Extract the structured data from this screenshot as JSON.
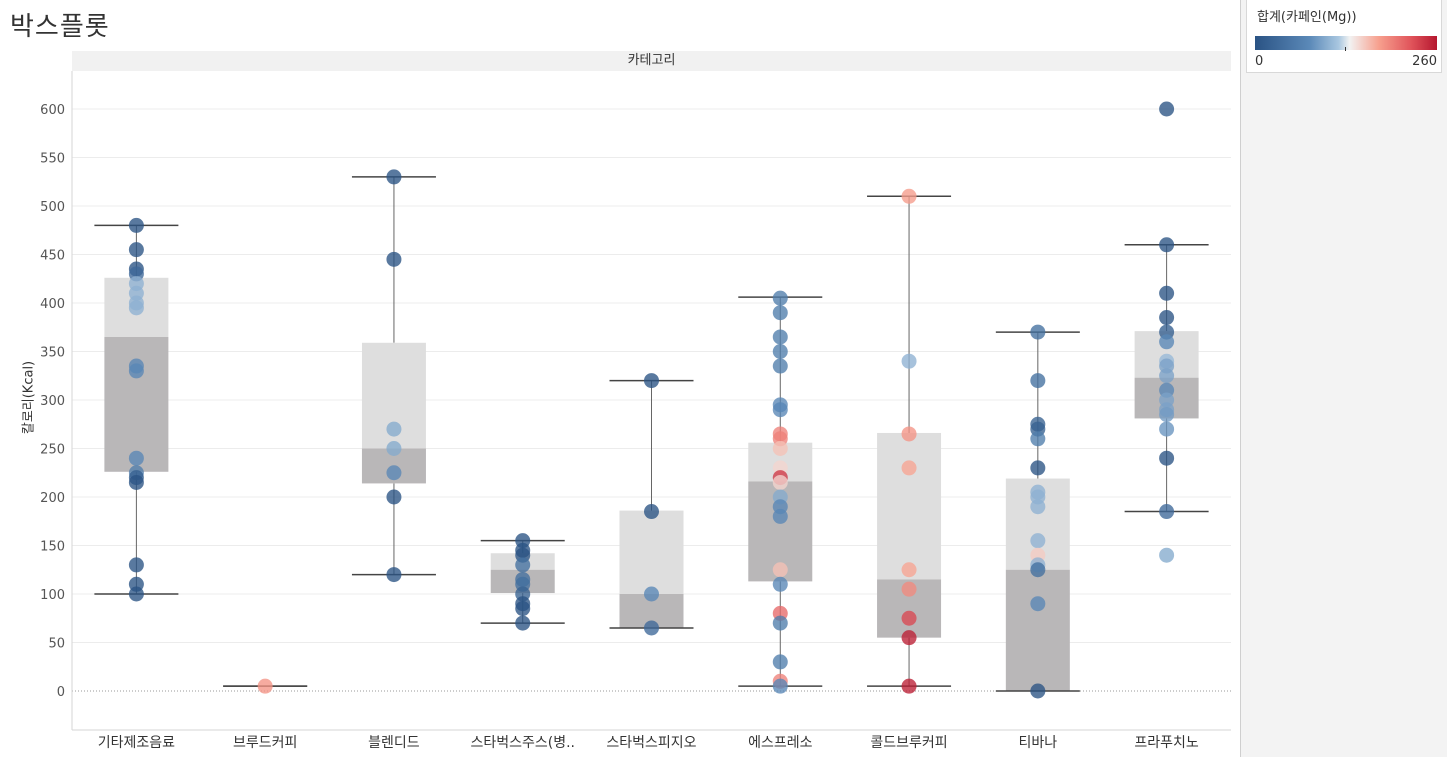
{
  "title": "박스플롯",
  "panel_header": "카테고리",
  "legend": {
    "title": "합계(카페인(Mg))",
    "min_label": "0",
    "max_label": "260",
    "color_scale": [
      "#2a5384",
      "#5b89b8",
      "#a9c7e0",
      "#f2f2f2",
      "#f7a08e",
      "#e0535a",
      "#b5172f"
    ]
  },
  "chart_data": {
    "type": "boxplot",
    "ylabel": "칼로리(Kcal)",
    "ylim": [
      -40,
      640
    ],
    "yticks": [
      0,
      50,
      100,
      150,
      200,
      250,
      300,
      350,
      400,
      450,
      500,
      550,
      600
    ],
    "color_field": "카페인(Mg)",
    "color_range": [
      0,
      260
    ],
    "categories": [
      "기타제조음료",
      "브루드커피",
      "블렌디드",
      "스타벅스주스(병..",
      "스타벅스피지오",
      "에스프레소",
      "콜드브루커피",
      "티바나",
      "프라푸치노"
    ],
    "boxes": [
      {
        "category": "기타제조음료",
        "min": 100,
        "q1": 226,
        "median": 365,
        "q3": 426,
        "max": 480
      },
      {
        "category": "브루드커피",
        "min": 5,
        "q1": 5,
        "median": 5,
        "q3": 5,
        "max": 5
      },
      {
        "category": "블렌디드",
        "min": 120,
        "q1": 214,
        "median": 250,
        "q3": 359,
        "max": 530
      },
      {
        "category": "스타벅스주스(병..",
        "min": 70,
        "q1": 101,
        "median": 125,
        "q3": 142,
        "max": 155
      },
      {
        "category": "스타벅스피지오",
        "min": 65,
        "q1": 65,
        "median": 100,
        "q3": 186,
        "max": 320
      },
      {
        "category": "에스프레소",
        "min": 5,
        "q1": 113,
        "median": 216,
        "q3": 256,
        "max": 406
      },
      {
        "category": "콜드브루커피",
        "min": 5,
        "q1": 55,
        "median": 115,
        "q3": 266,
        "max": 510
      },
      {
        "category": "티바나",
        "min": 0,
        "q1": 0,
        "median": 125,
        "q3": 219,
        "max": 370
      },
      {
        "category": "프라푸치노",
        "min": 185,
        "q1": 281,
        "median": 323,
        "q3": 371,
        "max": 460
      }
    ],
    "points": [
      {
        "category": "기타제조음료",
        "calories": 480,
        "caffeine": 0
      },
      {
        "category": "기타제조음료",
        "calories": 455,
        "caffeine": 0
      },
      {
        "category": "기타제조음료",
        "calories": 435,
        "caffeine": 0
      },
      {
        "category": "기타제조음료",
        "calories": 430,
        "caffeine": 30
      },
      {
        "category": "기타제조음료",
        "calories": 420,
        "caffeine": 105
      },
      {
        "category": "기타제조음료",
        "calories": 410,
        "caffeine": 105
      },
      {
        "category": "기타제조음료",
        "calories": 400,
        "caffeine": 105
      },
      {
        "category": "기타제조음료",
        "calories": 395,
        "caffeine": 105
      },
      {
        "category": "기타제조음료",
        "calories": 335,
        "caffeine": 75
      },
      {
        "category": "기타제조음료",
        "calories": 330,
        "caffeine": 75
      },
      {
        "category": "기타제조음료",
        "calories": 240,
        "caffeine": 75
      },
      {
        "category": "기타제조음료",
        "calories": 225,
        "caffeine": 60
      },
      {
        "category": "기타제조음료",
        "calories": 220,
        "caffeine": 15
      },
      {
        "category": "기타제조음료",
        "calories": 215,
        "caffeine": 0
      },
      {
        "category": "기타제조음료",
        "calories": 130,
        "caffeine": 0
      },
      {
        "category": "기타제조음료",
        "calories": 110,
        "caffeine": 0
      },
      {
        "category": "기타제조음료",
        "calories": 100,
        "caffeine": 0
      },
      {
        "category": "브루드커피",
        "calories": 5,
        "caffeine": 185
      },
      {
        "category": "블렌디드",
        "calories": 530,
        "caffeine": 0
      },
      {
        "category": "블렌디드",
        "calories": 445,
        "caffeine": 0
      },
      {
        "category": "블렌디드",
        "calories": 270,
        "caffeine": 100
      },
      {
        "category": "블렌디드",
        "calories": 250,
        "caffeine": 100
      },
      {
        "category": "블렌디드",
        "calories": 225,
        "caffeine": 75
      },
      {
        "category": "블렌디드",
        "calories": 200,
        "caffeine": 0
      },
      {
        "category": "블렌디드",
        "calories": 120,
        "caffeine": 0
      },
      {
        "category": "스타벅스주스(병..",
        "calories": 155,
        "caffeine": 0
      },
      {
        "category": "스타벅스주스(병..",
        "calories": 145,
        "caffeine": 0
      },
      {
        "category": "스타벅스주스(병..",
        "calories": 140,
        "caffeine": 0
      },
      {
        "category": "스타벅스주스(병..",
        "calories": 130,
        "caffeine": 40
      },
      {
        "category": "스타벅스주스(병..",
        "calories": 115,
        "caffeine": 40
      },
      {
        "category": "스타벅스주스(병..",
        "calories": 110,
        "caffeine": 40
      },
      {
        "category": "스타벅스주스(병..",
        "calories": 100,
        "caffeine": 20
      },
      {
        "category": "스타벅스주스(병..",
        "calories": 90,
        "caffeine": 0
      },
      {
        "category": "스타벅스주스(병..",
        "calories": 85,
        "caffeine": 0
      },
      {
        "category": "스타벅스주스(병..",
        "calories": 70,
        "caffeine": 0
      },
      {
        "category": "스타벅스피지오",
        "calories": 320,
        "caffeine": 0
      },
      {
        "category": "스타벅스피지오",
        "calories": 185,
        "caffeine": 0
      },
      {
        "category": "스타벅스피지오",
        "calories": 100,
        "caffeine": 75
      },
      {
        "category": "스타벅스피지오",
        "calories": 65,
        "caffeine": 30
      },
      {
        "category": "에스프레소",
        "calories": 405,
        "caffeine": 60
      },
      {
        "category": "에스프레소",
        "calories": 390,
        "caffeine": 60
      },
      {
        "category": "에스프레소",
        "calories": 365,
        "caffeine": 60
      },
      {
        "category": "에스프레소",
        "calories": 350,
        "caffeine": 60
      },
      {
        "category": "에스프레소",
        "calories": 335,
        "caffeine": 60
      },
      {
        "category": "에스프레소",
        "calories": 295,
        "caffeine": 75
      },
      {
        "category": "에스프레소",
        "calories": 290,
        "caffeine": 75
      },
      {
        "category": "에스프레소",
        "calories": 265,
        "caffeine": 195
      },
      {
        "category": "에스프레소",
        "calories": 260,
        "caffeine": 195
      },
      {
        "category": "에스프레소",
        "calories": 250,
        "caffeine": 160
      },
      {
        "category": "에스프레소",
        "calories": 230,
        "caffeine": 150
      },
      {
        "category": "에스프레소",
        "calories": 220,
        "caffeine": 240
      },
      {
        "category": "에스프레소",
        "calories": 215,
        "caffeine": 150
      },
      {
        "category": "에스프레소",
        "calories": 200,
        "caffeine": 100
      },
      {
        "category": "에스프레소",
        "calories": 190,
        "caffeine": 75
      },
      {
        "category": "에스프레소",
        "calories": 180,
        "caffeine": 75
      },
      {
        "category": "에스프레소",
        "calories": 125,
        "caffeine": 160
      },
      {
        "category": "에스프레소",
        "calories": 110,
        "caffeine": 75
      },
      {
        "category": "에스프레소",
        "calories": 80,
        "caffeine": 210
      },
      {
        "category": "에스프레소",
        "calories": 70,
        "caffeine": 60
      },
      {
        "category": "에스프레소",
        "calories": 30,
        "caffeine": 60
      },
      {
        "category": "에스프레소",
        "calories": 10,
        "caffeine": 195
      },
      {
        "category": "에스프레소",
        "calories": 5,
        "caffeine": 75
      },
      {
        "category": "콜드브루커피",
        "calories": 510,
        "caffeine": 180
      },
      {
        "category": "콜드브루커피",
        "calories": 340,
        "caffeine": 105
      },
      {
        "category": "콜드브루커피",
        "calories": 265,
        "caffeine": 185
      },
      {
        "category": "콜드브루커피",
        "calories": 230,
        "caffeine": 175
      },
      {
        "category": "콜드브루커피",
        "calories": 125,
        "caffeine": 175
      },
      {
        "category": "콜드브루커피",
        "calories": 105,
        "caffeine": 190
      },
      {
        "category": "콜드브루커피",
        "calories": 75,
        "caffeine": 230
      },
      {
        "category": "콜드브루커피",
        "calories": 55,
        "caffeine": 255
      },
      {
        "category": "콜드브루커피",
        "calories": 5,
        "caffeine": 255
      },
      {
        "category": "티바나",
        "calories": 370,
        "caffeine": 40
      },
      {
        "category": "티바나",
        "calories": 320,
        "caffeine": 40
      },
      {
        "category": "티바나",
        "calories": 275,
        "caffeine": 20
      },
      {
        "category": "티바나",
        "calories": 270,
        "caffeine": 20
      },
      {
        "category": "티바나",
        "calories": 260,
        "caffeine": 60
      },
      {
        "category": "티바나",
        "calories": 230,
        "caffeine": 0
      },
      {
        "category": "티바나",
        "calories": 205,
        "caffeine": 105
      },
      {
        "category": "티바나",
        "calories": 200,
        "caffeine": 105
      },
      {
        "category": "티바나",
        "calories": 190,
        "caffeine": 105
      },
      {
        "category": "티바나",
        "calories": 155,
        "caffeine": 105
      },
      {
        "category": "티바나",
        "calories": 140,
        "caffeine": 155
      },
      {
        "category": "티바나",
        "calories": 130,
        "caffeine": 105
      },
      {
        "category": "티바나",
        "calories": 125,
        "caffeine": 40
      },
      {
        "category": "티바나",
        "calories": 90,
        "caffeine": 75
      },
      {
        "category": "티바나",
        "calories": 0,
        "caffeine": 0
      },
      {
        "category": "프라푸치노",
        "calories": 600,
        "caffeine": 0
      },
      {
        "category": "프라푸치노",
        "calories": 460,
        "caffeine": 0
      },
      {
        "category": "프라푸치노",
        "calories": 410,
        "caffeine": 0
      },
      {
        "category": "프라푸치노",
        "calories": 385,
        "caffeine": 0
      },
      {
        "category": "프라푸치노",
        "calories": 370,
        "caffeine": 15
      },
      {
        "category": "프라푸치노",
        "calories": 360,
        "caffeine": 75
      },
      {
        "category": "프라푸치노",
        "calories": 340,
        "caffeine": 110
      },
      {
        "category": "프라푸치노",
        "calories": 335,
        "caffeine": 95
      },
      {
        "category": "프라푸치노",
        "calories": 325,
        "caffeine": 95
      },
      {
        "category": "프라푸치노",
        "calories": 310,
        "caffeine": 75
      },
      {
        "category": "프라푸치노",
        "calories": 300,
        "caffeine": 95
      },
      {
        "category": "프라푸치노",
        "calories": 290,
        "caffeine": 95
      },
      {
        "category": "프라푸치노",
        "calories": 285,
        "caffeine": 90
      },
      {
        "category": "프라푸치노",
        "calories": 270,
        "caffeine": 85
      },
      {
        "category": "프라푸치노",
        "calories": 240,
        "caffeine": 0
      },
      {
        "category": "프라푸치노",
        "calories": 185,
        "caffeine": 30
      },
      {
        "category": "프라푸치노",
        "calories": 140,
        "caffeine": 100
      }
    ]
  }
}
